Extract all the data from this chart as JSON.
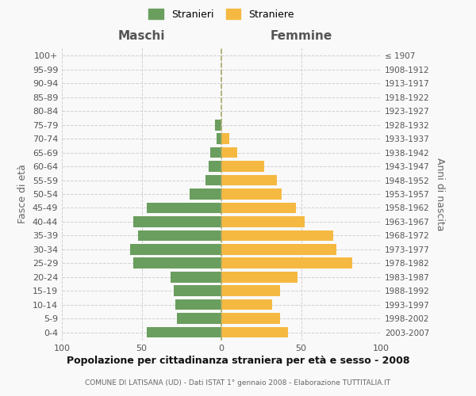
{
  "age_groups": [
    "0-4",
    "5-9",
    "10-14",
    "15-19",
    "20-24",
    "25-29",
    "30-34",
    "35-39",
    "40-44",
    "45-49",
    "50-54",
    "55-59",
    "60-64",
    "65-69",
    "70-74",
    "75-79",
    "80-84",
    "85-89",
    "90-94",
    "95-99",
    "100+"
  ],
  "birth_years": [
    "2003-2007",
    "1998-2002",
    "1993-1997",
    "1988-1992",
    "1983-1987",
    "1978-1982",
    "1973-1977",
    "1968-1972",
    "1963-1967",
    "1958-1962",
    "1953-1957",
    "1948-1952",
    "1943-1947",
    "1938-1942",
    "1933-1937",
    "1928-1932",
    "1923-1927",
    "1918-1922",
    "1913-1917",
    "1908-1912",
    "≤ 1907"
  ],
  "maschi": [
    47,
    28,
    29,
    30,
    32,
    55,
    57,
    52,
    55,
    47,
    20,
    10,
    8,
    7,
    3,
    4,
    0,
    0,
    0,
    0,
    0
  ],
  "femmine": [
    42,
    37,
    32,
    37,
    48,
    82,
    72,
    70,
    52,
    47,
    38,
    35,
    27,
    10,
    5,
    0,
    0,
    0,
    0,
    0,
    0
  ],
  "maschi_color": "#6a9e5e",
  "femmine_color": "#f5b942",
  "background_color": "#f9f9f9",
  "grid_color": "#d0d0d0",
  "title": "Popolazione per cittadinanza straniera per età e sesso - 2008",
  "subtitle": "COMUNE DI LATISANA (UD) - Dati ISTAT 1° gennaio 2008 - Elaborazione TUTTITALIA.IT",
  "header_left": "Maschi",
  "header_right": "Femmine",
  "ylabel_left": "Fasce di età",
  "ylabel_right": "Anni di nascita",
  "legend_maschi": "Stranieri",
  "legend_femmine": "Straniere",
  "xlim": 100,
  "center_line_color": "#aaaa66",
  "tick_fontsize": 8,
  "label_fontsize": 9,
  "header_fontsize": 11,
  "title_fontsize": 9,
  "subtitle_fontsize": 6.5
}
